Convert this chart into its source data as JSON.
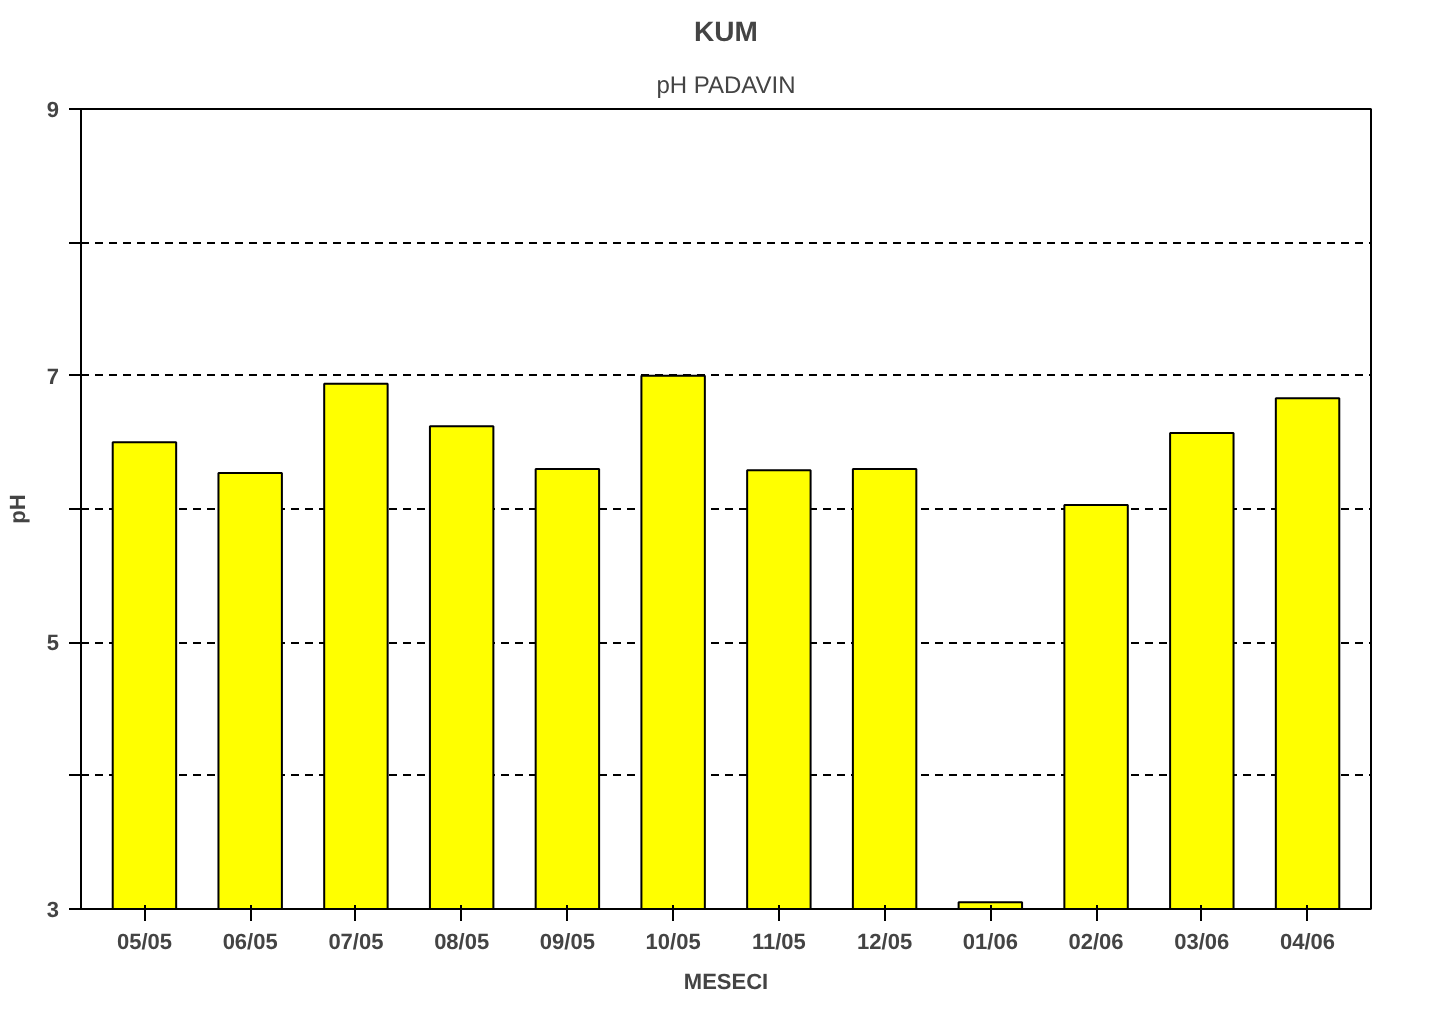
{
  "chart_data": {
    "type": "bar",
    "title": "KUM",
    "subtitle": "pH PADAVIN",
    "xlabel": "MESECI",
    "ylabel": "pH",
    "categories": [
      "05/05",
      "06/05",
      "07/05",
      "08/05",
      "09/05",
      "10/05",
      "11/05",
      "12/05",
      "01/06",
      "02/06",
      "03/06",
      "04/06"
    ],
    "values": [
      6.5,
      6.27,
      6.94,
      6.62,
      6.3,
      7.0,
      6.29,
      6.3,
      3.05,
      6.03,
      6.57,
      6.83
    ],
    "color": "#ffff00",
    "ylim": [
      3,
      9
    ],
    "yticks": [
      3,
      {
        "value": 4,
        "label": null
      },
      5,
      {
        "value": 6,
        "label": null
      },
      7,
      {
        "value": 8,
        "label": null
      },
      9
    ],
    "grid": "y"
  }
}
